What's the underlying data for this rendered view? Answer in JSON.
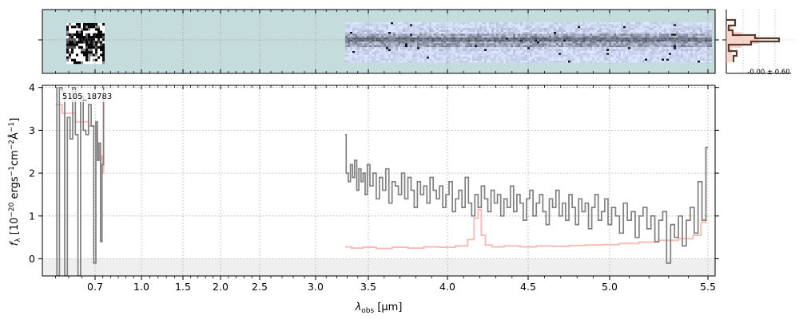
{
  "chart_data": [
    {
      "type": "heatmap",
      "panel": "spectrum-2d",
      "xaxis": "shared with 1D spectrum",
      "background": "#c5dcdc",
      "grid": true,
      "segments": [
        {
          "x_start": 0.6,
          "x_end": 0.75,
          "row_profile": "noisy black/white"
        },
        {
          "x_start": 3.28,
          "x_end": 5.5,
          "row_profile": "bright rows with dark trace at center"
        }
      ]
    },
    {
      "type": "line",
      "panel": "cross-dispersion-profile",
      "annotation": "-0.00 ± 0.60",
      "colors": {
        "profile": "#5b3a2e",
        "model": "#f6b3a6"
      }
    },
    {
      "type": "line",
      "panel": "spectrum-1d",
      "title": "",
      "label": "5105_18783",
      "xlabel_text": "λobs [μm]",
      "xlabel_main": "λ",
      "xlabel_sub": "obs",
      "xlabel_unit": " [μm]",
      "ylabel_text": "fλ [10⁻²⁰ ergs⁻¹cm⁻²Å⁻¹]",
      "ylabel_main": "f",
      "ylabel_sub": "λ",
      "ylabel_unit": " [10",
      "ylabel_exp1": "−20",
      "ylabel_mid": " ergs",
      "ylabel_exp2": "−1",
      "ylabel_mid2": "cm",
      "ylabel_exp3": "−2",
      "ylabel_mid3": "Å",
      "ylabel_exp4": "−1",
      "ylabel_end": "]",
      "ylim": [
        -0.4,
        4.05
      ],
      "xlim": [
        0.5,
        5.53
      ],
      "grid": true,
      "x_ticks": [
        {
          "value": 0.7,
          "label": "0.7"
        },
        {
          "value": 1.0,
          "label": "1.0"
        },
        {
          "value": 1.5,
          "label": "1.5"
        },
        {
          "value": 2.0,
          "label": "2.0"
        },
        {
          "value": 2.5,
          "label": "2.5"
        },
        {
          "value": 3.0,
          "label": "3.0"
        },
        {
          "value": 3.5,
          "label": "3.5"
        },
        {
          "value": 4.0,
          "label": "4.0"
        },
        {
          "value": 4.5,
          "label": "4.5"
        },
        {
          "value": 5.0,
          "label": "5.0"
        },
        {
          "value": 5.5,
          "label": "5.5"
        }
      ],
      "y_ticks": [
        {
          "value": 0,
          "label": "0"
        },
        {
          "value": 1,
          "label": "1"
        },
        {
          "value": 2,
          "label": "2"
        },
        {
          "value": 3,
          "label": "3"
        },
        {
          "value": 4,
          "label": "4"
        }
      ],
      "colors": {
        "flux": "#808080",
        "error": "#f7b6b0",
        "zero_band": "#efefef"
      },
      "series": [
        {
          "role": "flux",
          "x": [
            0.55,
            0.56,
            0.57,
            0.58,
            0.59,
            0.6,
            0.61,
            0.62,
            0.63,
            0.64,
            0.65,
            0.66,
            0.67,
            0.68,
            0.69,
            0.7,
            0.71,
            0.72,
            0.73,
            0.74,
            0.75,
            0.76
          ],
          "y": [
            4.0,
            -0.4,
            4.0,
            3.9,
            -0.4,
            3.3,
            2.8,
            4.0,
            2.9,
            -0.4,
            3.8,
            3.0,
            2.9,
            3.6,
            3.1,
            -0.1,
            3.2,
            2.3,
            2.7,
            0.4,
            2.2,
            4.0
          ]
        },
        {
          "role": "flux",
          "x": [
            3.28,
            3.3,
            3.32,
            3.34,
            3.36,
            3.38,
            3.4,
            3.42,
            3.44,
            3.46,
            3.48,
            3.5,
            3.52,
            3.54,
            3.56,
            3.58,
            3.6,
            3.62,
            3.64,
            3.66,
            3.68,
            3.7,
            3.72,
            3.74,
            3.76,
            3.78,
            3.8,
            3.82,
            3.84,
            3.86,
            3.88,
            3.9,
            3.92,
            3.94,
            3.96,
            3.98,
            4.0,
            4.02,
            4.04,
            4.06,
            4.08,
            4.1,
            4.12,
            4.14,
            4.16,
            4.18,
            4.2,
            4.22,
            4.24,
            4.26,
            4.28,
            4.3,
            4.32,
            4.34,
            4.36,
            4.38,
            4.4,
            4.42,
            4.44,
            4.46,
            4.48,
            4.5,
            4.52,
            4.54,
            4.56,
            4.58,
            4.6,
            4.62,
            4.64,
            4.66,
            4.68,
            4.7,
            4.72,
            4.74,
            4.76,
            4.78,
            4.8,
            4.82,
            4.84,
            4.86,
            4.88,
            4.9,
            4.92,
            4.94,
            4.96,
            4.98,
            5.0,
            5.02,
            5.04,
            5.06,
            5.08,
            5.1,
            5.12,
            5.14,
            5.16,
            5.18,
            5.2,
            5.22,
            5.24,
            5.26,
            5.28,
            5.3,
            5.32,
            5.34,
            5.36,
            5.38,
            5.4,
            5.42,
            5.44,
            5.46,
            5.48,
            5.5
          ],
          "y": [
            2.9,
            2.0,
            1.8,
            2.2,
            1.9,
            2.3,
            1.6,
            2.1,
            1.8,
            2.0,
            1.5,
            2.2,
            1.7,
            2.0,
            1.4,
            1.9,
            1.6,
            2.1,
            1.3,
            1.8,
            1.7,
            1.5,
            2.0,
            1.4,
            1.9,
            1.6,
            1.2,
            1.8,
            1.5,
            1.7,
            1.3,
            1.9,
            1.6,
            1.4,
            1.7,
            1.2,
            1.5,
            1.8,
            1.1,
            1.4,
            1.6,
            1.2,
            1.9,
            1.3,
            1.0,
            1.5,
            1.2,
            1.7,
            1.4,
            1.1,
            1.6,
            1.3,
            1.5,
            1.0,
            1.4,
            1.2,
            1.7,
            1.1,
            1.5,
            1.3,
            0.9,
            1.4,
            1.6,
            1.0,
            1.3,
            1.5,
            1.1,
            0.8,
            1.4,
            1.2,
            1.6,
            1.0,
            1.3,
            0.9,
            1.5,
            1.2,
            0.8,
            1.4,
            1.1,
            1.3,
            0.7,
            1.2,
            1.5,
            0.9,
            1.1,
            1.4,
            0.8,
            1.2,
            1.0,
            0.6,
            1.3,
            0.9,
            1.1,
            0.5,
            1.0,
            1.2,
            0.7,
            1.0,
            0.4,
            0.9,
            1.1,
            -0.1,
            0.8,
            0.5,
            1.0,
            0.3,
            0.9,
            1.2,
            0.6,
            1.8,
            0.9,
            2.6
          ]
        },
        {
          "role": "error",
          "x": [
            0.55,
            0.6,
            0.65,
            0.7,
            0.71,
            0.72,
            0.73,
            0.74,
            0.75,
            0.76
          ],
          "y": [
            3.6,
            3.4,
            3.2,
            3.1,
            2.8,
            2.6,
            2.3,
            2.4,
            2.0,
            3.7
          ]
        },
        {
          "role": "error",
          "x": [
            3.28,
            3.4,
            3.5,
            3.6,
            3.7,
            3.8,
            3.9,
            4.0,
            4.1,
            4.15,
            4.18,
            4.2,
            4.22,
            4.25,
            4.3,
            4.4,
            4.5,
            4.6,
            4.7,
            4.8,
            4.9,
            5.0,
            5.1,
            5.2,
            5.3,
            5.4,
            5.45,
            5.48,
            5.5
          ],
          "y": [
            0.28,
            0.25,
            0.27,
            0.24,
            0.27,
            0.25,
            0.28,
            0.27,
            0.3,
            0.45,
            0.95,
            1.15,
            0.55,
            0.32,
            0.28,
            0.3,
            0.28,
            0.3,
            0.29,
            0.31,
            0.32,
            0.33,
            0.36,
            0.39,
            0.43,
            0.47,
            0.55,
            0.85,
            2.6
          ]
        }
      ]
    }
  ]
}
